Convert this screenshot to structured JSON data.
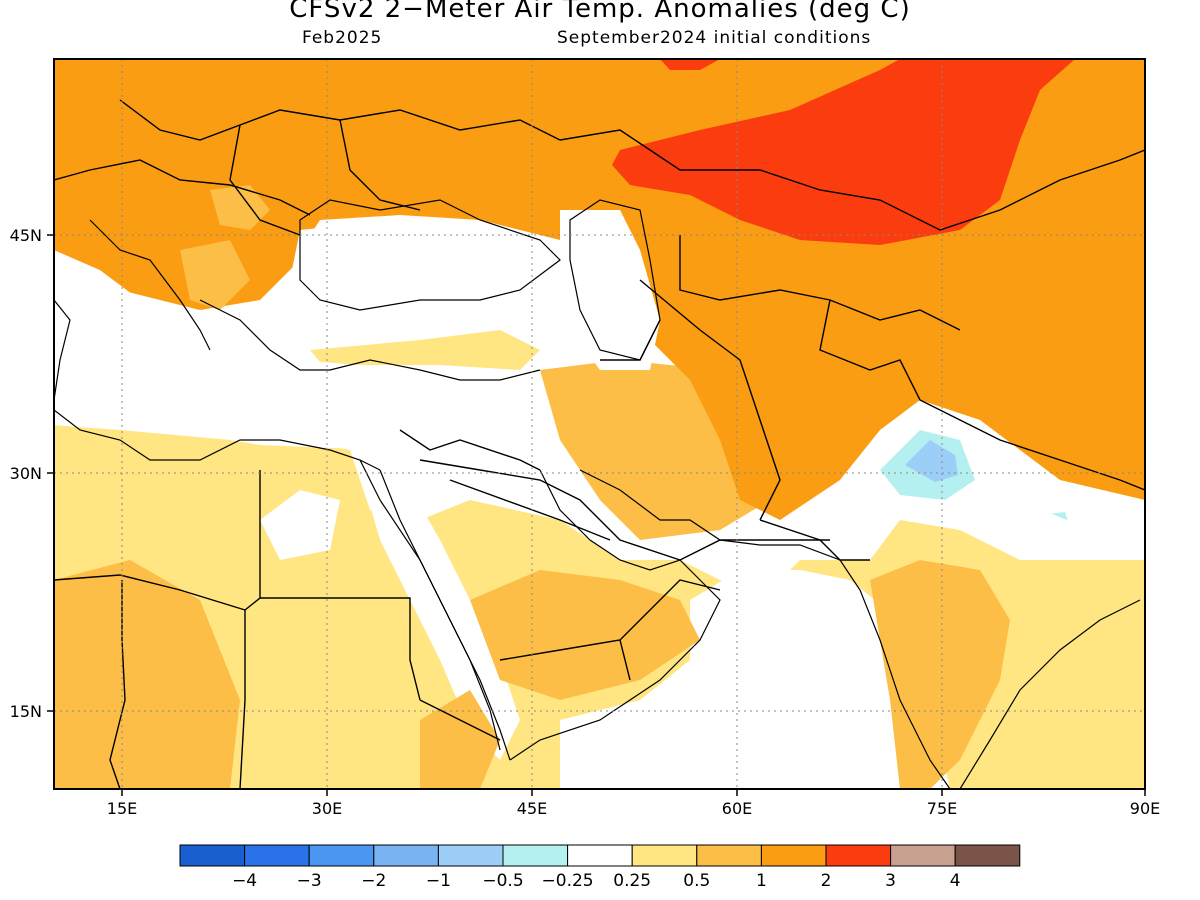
{
  "title": "CFSv2 2−Meter Air Temp. Anomalies (deg C)",
  "subtitle_left": "Feb2025",
  "subtitle_right": "September2024 initial conditions",
  "axes": {
    "lon_labels": [
      "15E",
      "30E",
      "45E",
      "60E",
      "75E",
      "90E"
    ],
    "lat_labels": [
      "45N",
      "30N",
      "15N"
    ]
  },
  "colorbar": {
    "colors": [
      "#1a5fd0",
      "#2a72e8",
      "#4a96f0",
      "#78b4f2",
      "#9ccef7",
      "#b4f0f0",
      "#ffffff",
      "#ffe682",
      "#fcbe46",
      "#fa9d12",
      "#fa3c0e",
      "#c8a090",
      "#7a5448"
    ],
    "labels": [
      "−4",
      "−3",
      "−2",
      "−1",
      "−0.5",
      "−0.25",
      "0.25",
      "0.5",
      "1",
      "2",
      "3",
      "4"
    ]
  }
}
